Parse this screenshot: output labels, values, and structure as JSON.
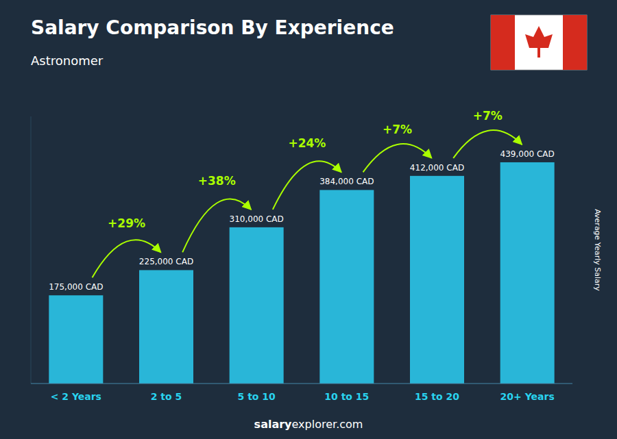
{
  "chart_data": {
    "type": "bar",
    "title": "Salary Comparison By Experience",
    "subtitle": "Astronomer",
    "categories": [
      "< 2 Years",
      "2 to 5",
      "5 to 10",
      "10 to 15",
      "15 to 20",
      "20+ Years"
    ],
    "values": [
      175000,
      225000,
      310000,
      384000,
      412000,
      439000
    ],
    "value_labels": [
      "175,000 CAD",
      "225,000 CAD",
      "310,000 CAD",
      "384,000 CAD",
      "412,000 CAD",
      "439,000 CAD"
    ],
    "data_labels": true,
    "annotations": [
      "+29%",
      "+38%",
      "+24%",
      "+7%",
      "+7%"
    ],
    "ylabel": "Average Yearly Salary",
    "footer": [
      "salary",
      "explorer.com"
    ],
    "color": "#29b6d8",
    "ylim": [
      0,
      530000
    ],
    "grid": false,
    "tick_labels": "x"
  }
}
